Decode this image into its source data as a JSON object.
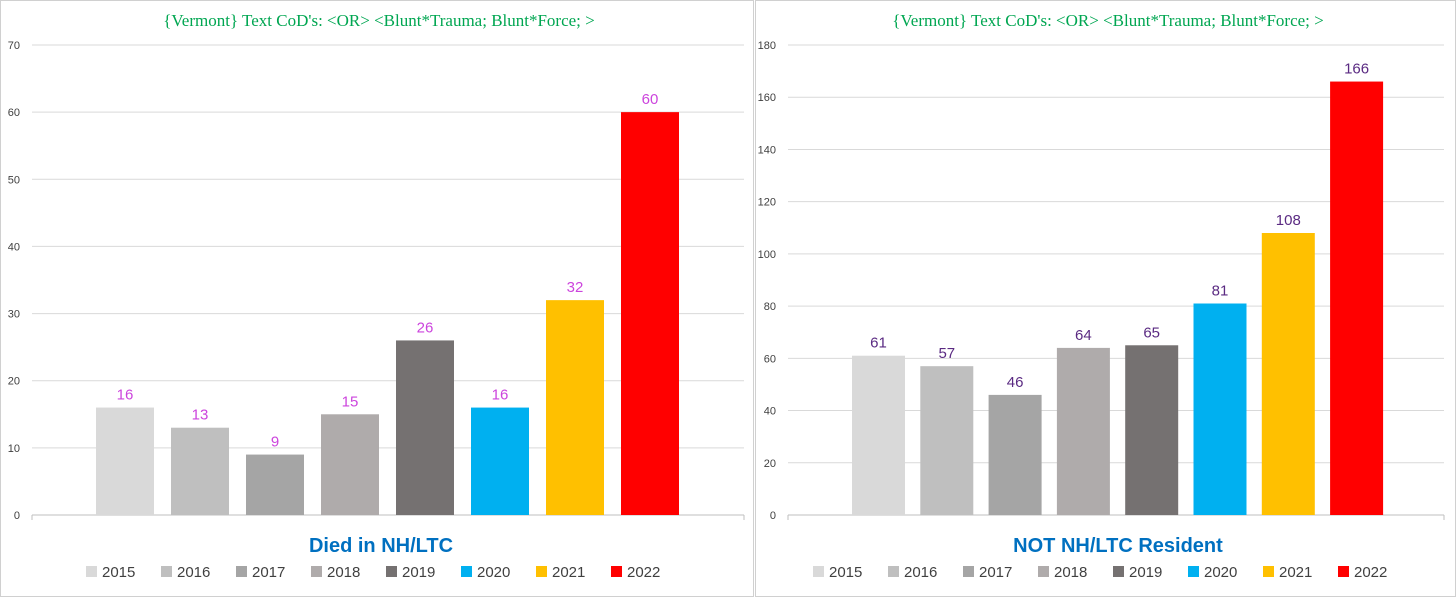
{
  "chart_data": [
    {
      "type": "bar",
      "title": "{Vermont}   Text CoD's: <OR> <Blunt*Trauma; Blunt*Force;  >",
      "xlabel": "Died  in NH/LTC",
      "ylabel": "",
      "ylim": [
        0,
        70
      ],
      "yticks": [
        0,
        10,
        20,
        30,
        40,
        50,
        60,
        70
      ],
      "grid": true,
      "legend_position": "bottom",
      "categories": [
        "2015",
        "2016",
        "2017",
        "2018",
        "2019",
        "2020",
        "2021",
        "2022"
      ],
      "values": [
        16,
        13,
        9,
        15,
        26,
        16,
        32,
        60
      ],
      "colors": [
        "#d9d9d9",
        "#bfbfbf",
        "#a5a5a5",
        "#afabab",
        "#757171",
        "#00b0f0",
        "#ffc000",
        "#ff0000"
      ],
      "label_color": "#cc44dd"
    },
    {
      "type": "bar",
      "title": "{Vermont}   Text CoD's: <OR> <Blunt*Trauma; Blunt*Force;  >",
      "xlabel": "NOT NH/LTC Resident",
      "ylabel": "",
      "ylim": [
        0,
        180
      ],
      "yticks": [
        0,
        20,
        40,
        60,
        80,
        100,
        120,
        140,
        160,
        180
      ],
      "grid": true,
      "legend_position": "bottom",
      "categories": [
        "2015",
        "2016",
        "2017",
        "2018",
        "2019",
        "2020",
        "2021",
        "2022"
      ],
      "values": [
        61,
        57,
        46,
        64,
        65,
        81,
        108,
        166
      ],
      "colors": [
        "#d9d9d9",
        "#bfbfbf",
        "#a5a5a5",
        "#afabab",
        "#757171",
        "#00b0f0",
        "#ffc000",
        "#ff0000"
      ],
      "label_color": "#5a2a82"
    }
  ]
}
